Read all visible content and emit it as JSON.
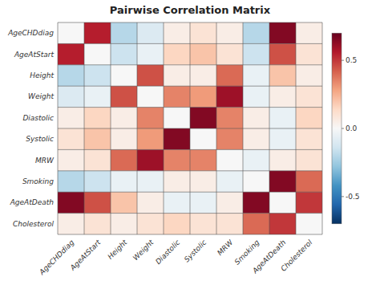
{
  "chart_data": {
    "type": "heatmap",
    "title": "Pairwise Correlation Matrix",
    "categories": [
      "AgeCHDdiag",
      "AgeAtStart",
      "Height",
      "Weight",
      "Diastolic",
      "Systolic",
      "MRW",
      "Smoking",
      "AgeAtDeath",
      "Cholesterol"
    ],
    "values": [
      [
        0.0,
        0.55,
        -0.2,
        -0.1,
        0.05,
        0.1,
        0.05,
        -0.2,
        0.65,
        0.05
      ],
      [
        0.55,
        0.0,
        -0.15,
        -0.05,
        0.15,
        0.2,
        0.1,
        -0.15,
        0.45,
        0.1
      ],
      [
        -0.2,
        -0.15,
        0.0,
        0.45,
        0.05,
        0.05,
        0.4,
        -0.05,
        0.2,
        0.05
      ],
      [
        -0.1,
        -0.05,
        0.45,
        0.0,
        0.35,
        0.3,
        0.6,
        -0.05,
        0.05,
        0.1
      ],
      [
        0.05,
        0.15,
        0.05,
        0.35,
        0.0,
        0.65,
        0.35,
        0.05,
        -0.05,
        0.15
      ],
      [
        0.1,
        0.2,
        0.05,
        0.3,
        0.65,
        0.0,
        0.35,
        0.05,
        -0.05,
        0.1
      ],
      [
        0.05,
        0.1,
        0.4,
        0.6,
        0.35,
        0.35,
        0.0,
        -0.05,
        0.05,
        0.1
      ],
      [
        -0.2,
        -0.15,
        -0.05,
        -0.05,
        0.05,
        0.05,
        -0.05,
        0.0,
        0.65,
        0.4
      ],
      [
        0.65,
        0.45,
        0.2,
        0.05,
        -0.05,
        -0.05,
        0.05,
        0.65,
        0.0,
        0.5
      ],
      [
        0.05,
        0.1,
        0.05,
        0.1,
        0.15,
        0.1,
        0.1,
        0.4,
        0.5,
        0.0
      ]
    ],
    "color_range": [
      -0.7,
      0.7
    ],
    "color_ticks": [
      0.5,
      {
        "value": 0,
        "label": "0.0"
      },
      -0.5
    ]
  }
}
